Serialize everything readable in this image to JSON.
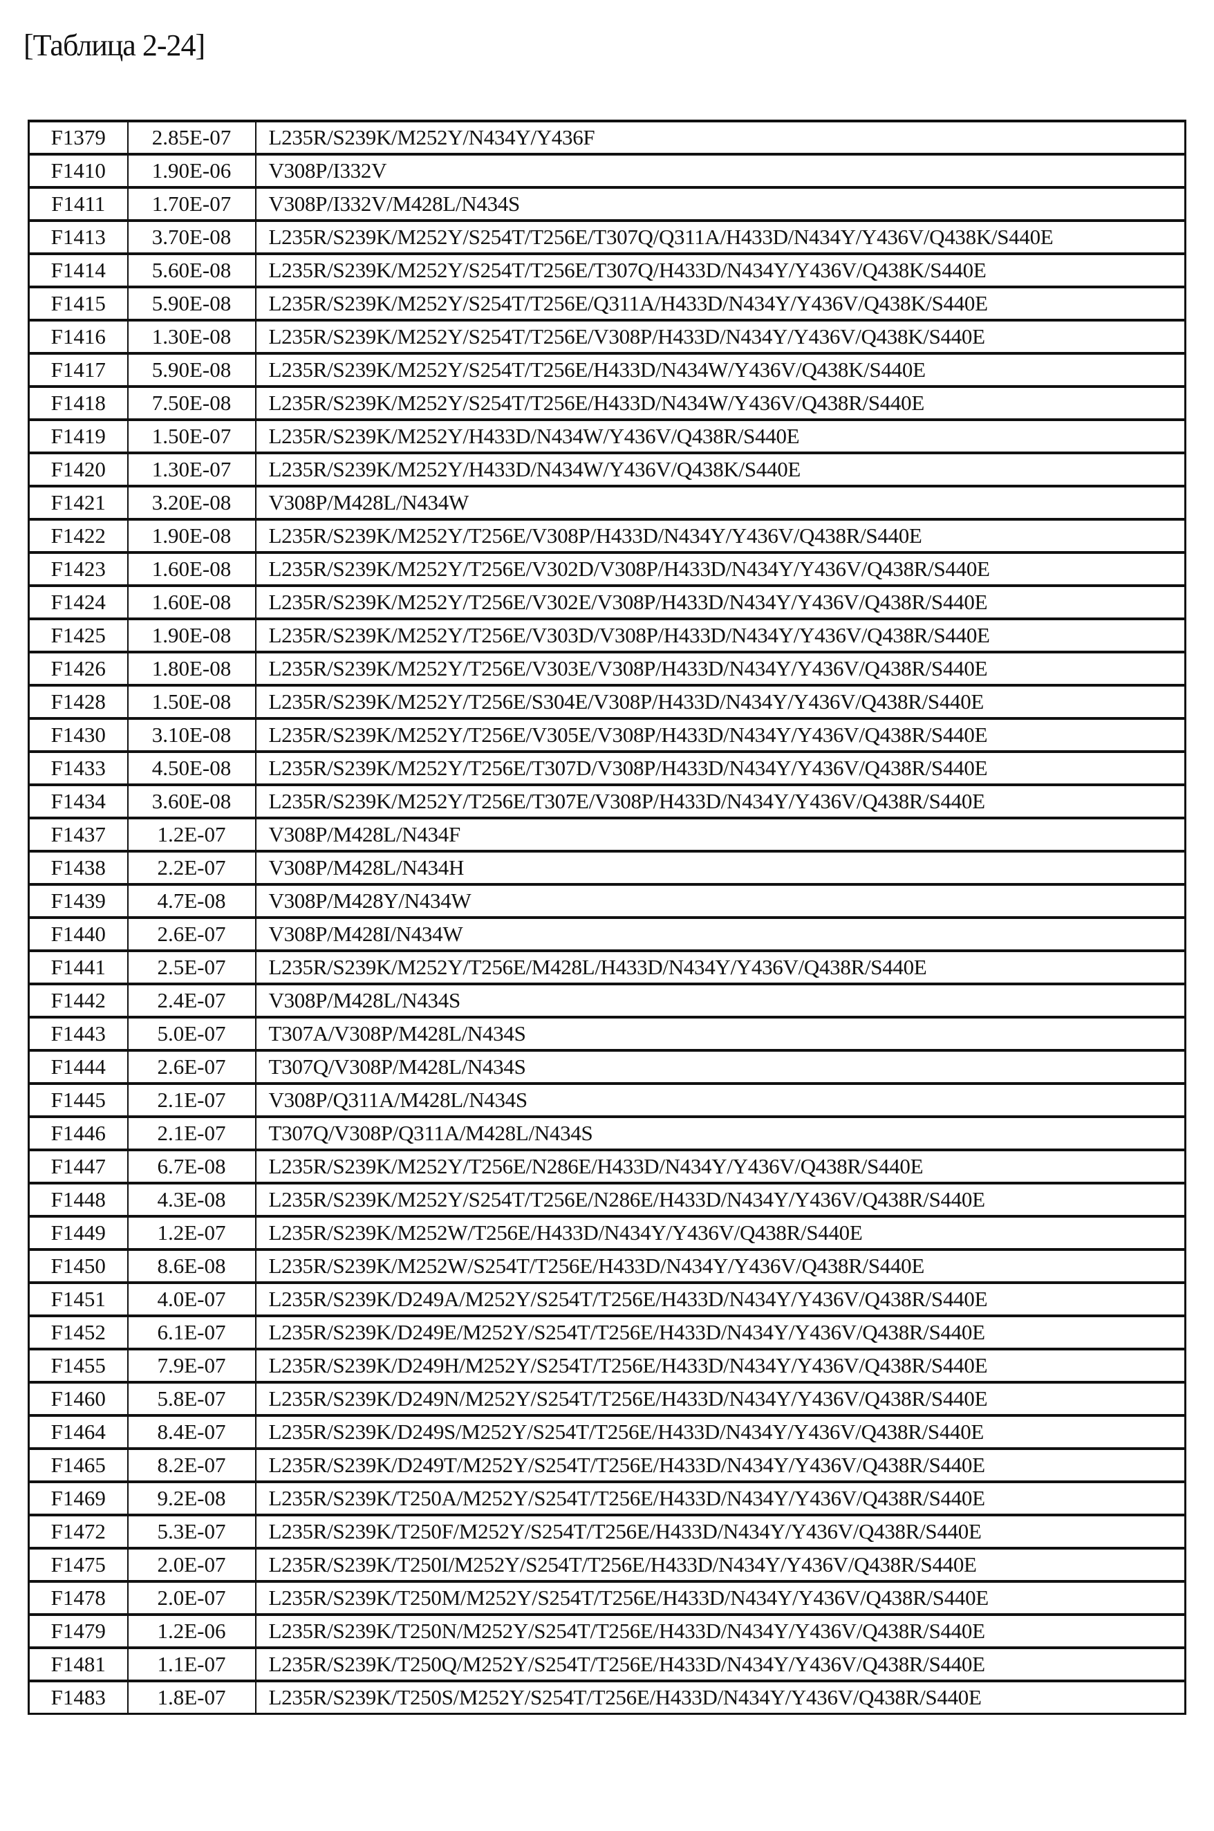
{
  "title": "[Таблица 2-24]",
  "rows": [
    [
      "F1379",
      "2.85E-07",
      "L235R/S239K/M252Y/N434Y/Y436F"
    ],
    [
      "F1410",
      "1.90E-06",
      "V308P/I332V"
    ],
    [
      "F1411",
      "1.70E-07",
      "V308P/I332V/M428L/N434S"
    ],
    [
      "F1413",
      "3.70E-08",
      "L235R/S239K/M252Y/S254T/T256E/T307Q/Q311A/H433D/N434Y/Y436V/Q438K/S440E"
    ],
    [
      "F1414",
      "5.60E-08",
      "L235R/S239K/M252Y/S254T/T256E/T307Q/H433D/N434Y/Y436V/Q438K/S440E"
    ],
    [
      "F1415",
      "5.90E-08",
      "L235R/S239K/M252Y/S254T/T256E/Q311A/H433D/N434Y/Y436V/Q438K/S440E"
    ],
    [
      "F1416",
      "1.30E-08",
      "L235R/S239K/M252Y/S254T/T256E/V308P/H433D/N434Y/Y436V/Q438K/S440E"
    ],
    [
      "F1417",
      "5.90E-08",
      "L235R/S239K/M252Y/S254T/T256E/H433D/N434W/Y436V/Q438K/S440E"
    ],
    [
      "F1418",
      "7.50E-08",
      "L235R/S239K/M252Y/S254T/T256E/H433D/N434W/Y436V/Q438R/S440E"
    ],
    [
      "F1419",
      "1.50E-07",
      "L235R/S239K/M252Y/H433D/N434W/Y436V/Q438R/S440E"
    ],
    [
      "F1420",
      "1.30E-07",
      "L235R/S239K/M252Y/H433D/N434W/Y436V/Q438K/S440E"
    ],
    [
      "F1421",
      "3.20E-08",
      "V308P/M428L/N434W"
    ],
    [
      "F1422",
      "1.90E-08",
      "L235R/S239K/M252Y/T256E/V308P/H433D/N434Y/Y436V/Q438R/S440E"
    ],
    [
      "F1423",
      "1.60E-08",
      "L235R/S239K/M252Y/T256E/V302D/V308P/H433D/N434Y/Y436V/Q438R/S440E"
    ],
    [
      "F1424",
      "1.60E-08",
      "L235R/S239K/M252Y/T256E/V302E/V308P/H433D/N434Y/Y436V/Q438R/S440E"
    ],
    [
      "F1425",
      "1.90E-08",
      "L235R/S239K/M252Y/T256E/V303D/V308P/H433D/N434Y/Y436V/Q438R/S440E"
    ],
    [
      "F1426",
      "1.80E-08",
      "L235R/S239K/M252Y/T256E/V303E/V308P/H433D/N434Y/Y436V/Q438R/S440E"
    ],
    [
      "F1428",
      "1.50E-08",
      "L235R/S239K/M252Y/T256E/S304E/V308P/H433D/N434Y/Y436V/Q438R/S440E"
    ],
    [
      "F1430",
      "3.10E-08",
      "L235R/S239K/M252Y/T256E/V305E/V308P/H433D/N434Y/Y436V/Q438R/S440E"
    ],
    [
      "F1433",
      "4.50E-08",
      "L235R/S239K/M252Y/T256E/T307D/V308P/H433D/N434Y/Y436V/Q438R/S440E"
    ],
    [
      "F1434",
      "3.60E-08",
      "L235R/S239K/M252Y/T256E/T307E/V308P/H433D/N434Y/Y436V/Q438R/S440E"
    ],
    [
      "F1437",
      "1.2E-07",
      "V308P/M428L/N434F"
    ],
    [
      "F1438",
      "2.2E-07",
      "V308P/M428L/N434H"
    ],
    [
      "F1439",
      "4.7E-08",
      "V308P/M428Y/N434W"
    ],
    [
      "F1440",
      "2.6E-07",
      "V308P/M428I/N434W"
    ],
    [
      "F1441",
      "2.5E-07",
      "L235R/S239K/M252Y/T256E/M428L/H433D/N434Y/Y436V/Q438R/S440E"
    ],
    [
      "F1442",
      "2.4E-07",
      "V308P/M428L/N434S"
    ],
    [
      "F1443",
      "5.0E-07",
      "T307A/V308P/M428L/N434S"
    ],
    [
      "F1444",
      "2.6E-07",
      "T307Q/V308P/M428L/N434S"
    ],
    [
      "F1445",
      "2.1E-07",
      "V308P/Q311A/M428L/N434S"
    ],
    [
      "F1446",
      "2.1E-07",
      "T307Q/V308P/Q311A/M428L/N434S"
    ],
    [
      "F1447",
      "6.7E-08",
      "L235R/S239K/M252Y/T256E/N286E/H433D/N434Y/Y436V/Q438R/S440E"
    ],
    [
      "F1448",
      "4.3E-08",
      "L235R/S239K/M252Y/S254T/T256E/N286E/H433D/N434Y/Y436V/Q438R/S440E"
    ],
    [
      "F1449",
      "1.2E-07",
      "L235R/S239K/M252W/T256E/H433D/N434Y/Y436V/Q438R/S440E"
    ],
    [
      "F1450",
      "8.6E-08",
      "L235R/S239K/M252W/S254T/T256E/H433D/N434Y/Y436V/Q438R/S440E"
    ],
    [
      "F1451",
      "4.0E-07",
      "L235R/S239K/D249A/M252Y/S254T/T256E/H433D/N434Y/Y436V/Q438R/S440E"
    ],
    [
      "F1452",
      "6.1E-07",
      "L235R/S239K/D249E/M252Y/S254T/T256E/H433D/N434Y/Y436V/Q438R/S440E"
    ],
    [
      "F1455",
      "7.9E-07",
      "L235R/S239K/D249H/M252Y/S254T/T256E/H433D/N434Y/Y436V/Q438R/S440E"
    ],
    [
      "F1460",
      "5.8E-07",
      "L235R/S239K/D249N/M252Y/S254T/T256E/H433D/N434Y/Y436V/Q438R/S440E"
    ],
    [
      "F1464",
      "8.4E-07",
      "L235R/S239K/D249S/M252Y/S254T/T256E/H433D/N434Y/Y436V/Q438R/S440E"
    ],
    [
      "F1465",
      "8.2E-07",
      "L235R/S239K/D249T/M252Y/S254T/T256E/H433D/N434Y/Y436V/Q438R/S440E"
    ],
    [
      "F1469",
      "9.2E-08",
      "L235R/S239K/T250A/M252Y/S254T/T256E/H433D/N434Y/Y436V/Q438R/S440E"
    ],
    [
      "F1472",
      "5.3E-07",
      "L235R/S239K/T250F/M252Y/S254T/T256E/H433D/N434Y/Y436V/Q438R/S440E"
    ],
    [
      "F1475",
      "2.0E-07",
      "L235R/S239K/T250I/M252Y/S254T/T256E/H433D/N434Y/Y436V/Q438R/S440E"
    ],
    [
      "F1478",
      "2.0E-07",
      "L235R/S239K/T250M/M252Y/S254T/T256E/H433D/N434Y/Y436V/Q438R/S440E"
    ],
    [
      "F1479",
      "1.2E-06",
      "L235R/S239K/T250N/M252Y/S254T/T256E/H433D/N434Y/Y436V/Q438R/S440E"
    ],
    [
      "F1481",
      "1.1E-07",
      "L235R/S239K/T250Q/M252Y/S254T/T256E/H433D/N434Y/Y436V/Q438R/S440E"
    ],
    [
      "F1483",
      "1.8E-07",
      "L235R/S239K/T250S/M252Y/S254T/T256E/H433D/N434Y/Y436V/Q438R/S440E"
    ]
  ]
}
